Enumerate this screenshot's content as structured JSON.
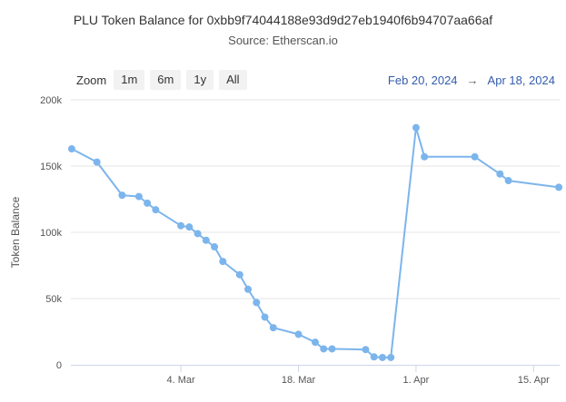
{
  "chart_data": {
    "type": "line",
    "title": "PLU Token Balance for 0xbb9f74044188e93d9d27eb1940f6b94707aa66af",
    "subtitle": "Source: Etherscan.io",
    "ylabel": "Token Balance",
    "xlabel": "",
    "ylim": [
      0,
      200000
    ],
    "y_ticks": [
      {
        "value": 0,
        "label": "0"
      },
      {
        "value": 50000,
        "label": "50k"
      },
      {
        "value": 100000,
        "label": "100k"
      },
      {
        "value": 150000,
        "label": "150k"
      },
      {
        "value": 200000,
        "label": "200k"
      }
    ],
    "x_ticks": [
      {
        "date": "2024-03-04",
        "label": "4. Mar"
      },
      {
        "date": "2024-03-18",
        "label": "18. Mar"
      },
      {
        "date": "2024-04-01",
        "label": "1. Apr"
      },
      {
        "date": "2024-04-15",
        "label": "15. Apr"
      }
    ],
    "x_range": [
      "2024-02-20",
      "2024-04-18"
    ],
    "grid": "horizontal",
    "series": [
      {
        "color": "#7cb5ec",
        "points": [
          {
            "x": "2024-02-20",
            "y": 163000
          },
          {
            "x": "2024-02-23",
            "y": 153000
          },
          {
            "x": "2024-02-26",
            "y": 128000
          },
          {
            "x": "2024-02-28",
            "y": 127000
          },
          {
            "x": "2024-02-29",
            "y": 122000
          },
          {
            "x": "2024-03-01",
            "y": 117000
          },
          {
            "x": "2024-03-04",
            "y": 105000
          },
          {
            "x": "2024-03-05",
            "y": 104000
          },
          {
            "x": "2024-03-06",
            "y": 99000
          },
          {
            "x": "2024-03-07",
            "y": 94000
          },
          {
            "x": "2024-03-08",
            "y": 89000
          },
          {
            "x": "2024-03-09",
            "y": 78000
          },
          {
            "x": "2024-03-11",
            "y": 68000
          },
          {
            "x": "2024-03-12",
            "y": 57000
          },
          {
            "x": "2024-03-13",
            "y": 47000
          },
          {
            "x": "2024-03-14",
            "y": 36000
          },
          {
            "x": "2024-03-15",
            "y": 28000
          },
          {
            "x": "2024-03-18",
            "y": 23000
          },
          {
            "x": "2024-03-20",
            "y": 17000
          },
          {
            "x": "2024-03-21",
            "y": 12000
          },
          {
            "x": "2024-03-22",
            "y": 12000
          },
          {
            "x": "2024-03-26",
            "y": 11500
          },
          {
            "x": "2024-03-27",
            "y": 6000
          },
          {
            "x": "2024-03-28",
            "y": 5500
          },
          {
            "x": "2024-03-29",
            "y": 5500
          },
          {
            "x": "2024-04-01",
            "y": 179000
          },
          {
            "x": "2024-04-02",
            "y": 157000
          },
          {
            "x": "2024-04-08",
            "y": 157000
          },
          {
            "x": "2024-04-11",
            "y": 144000
          },
          {
            "x": "2024-04-12",
            "y": 139000
          },
          {
            "x": "2024-04-18",
            "y": 134000
          }
        ]
      }
    ]
  },
  "zoom": {
    "label": "Zoom",
    "buttons": [
      "1m",
      "6m",
      "1y",
      "All"
    ]
  },
  "range": {
    "from": "Feb 20, 2024",
    "arrow": "→",
    "to": "Apr 18, 2024"
  }
}
